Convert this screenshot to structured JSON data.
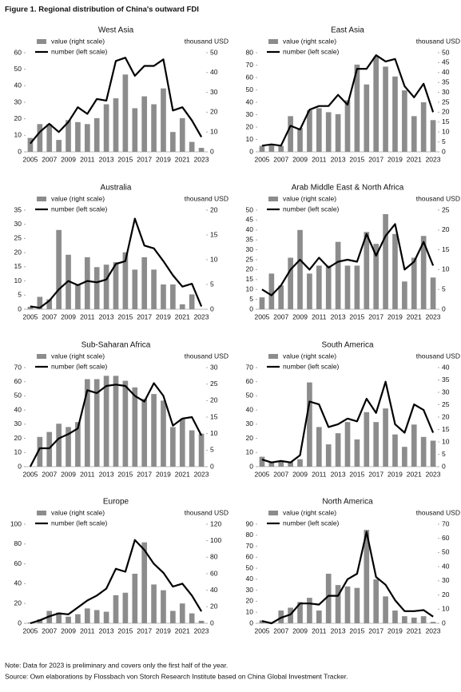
{
  "title": "Figure 1. Regional distribution of China's outward FDI",
  "notes": [
    "Note: Data for 2023 is preliminary and covers only the first half of the year.",
    "Source: Own elaborations by Flossbach von Storch Research Institute based on China Global Investment Tracker."
  ],
  "chart_data": [
    {
      "type": "combo",
      "title": "West Asia",
      "unit": "thousand USD",
      "categories": [
        "2005",
        null,
        "2007",
        null,
        "2009",
        null,
        "2011",
        null,
        "2013",
        null,
        "2015",
        null,
        "2017",
        null,
        "2019",
        null,
        "2021",
        null,
        "2023"
      ],
      "ylim": [
        0,
        60
      ],
      "yticks": [
        0,
        10,
        20,
        30,
        40,
        50,
        60
      ],
      "y2lim": [
        0,
        50
      ],
      "y2ticks": [
        0,
        10,
        20,
        30,
        40,
        50
      ],
      "series": [
        {
          "name": "value (right scale)",
          "type": "bar",
          "axis": "y2",
          "color": "#8c8c8c",
          "values": [
            7,
            14,
            14,
            6,
            16,
            15,
            14,
            17,
            24,
            27,
            39,
            22,
            28,
            24,
            32,
            10,
            17,
            5,
            2
          ]
        },
        {
          "name": "number (left scale)",
          "type": "line",
          "color": "#000000",
          "values": [
            5,
            12,
            17,
            12,
            18,
            27,
            23,
            32,
            31,
            55,
            57,
            46,
            52,
            52,
            56,
            25,
            27,
            19,
            9
          ]
        }
      ]
    },
    {
      "type": "combo",
      "title": "East Asia",
      "unit": "thousand USD",
      "categories": [
        "2005",
        null,
        "2007",
        null,
        "2009",
        null,
        "2011",
        null,
        "2013",
        null,
        "2015",
        null,
        "2017",
        null,
        "2019",
        null,
        "2021",
        null,
        "2023"
      ],
      "ylim": [
        0,
        80
      ],
      "yticks": [
        0,
        10,
        20,
        30,
        40,
        50,
        60,
        70,
        80
      ],
      "y2lim": [
        0,
        50
      ],
      "y2ticks": [
        0,
        5,
        10,
        15,
        20,
        25,
        30,
        35,
        40,
        45,
        50
      ],
      "series": [
        {
          "name": "value (right scale)",
          "type": "bar",
          "axis": "y2",
          "color": "#8c8c8c",
          "values": [
            3,
            4,
            3,
            18,
            12,
            21,
            22,
            20,
            19,
            26,
            44,
            34,
            48,
            43,
            38,
            31,
            18,
            25,
            16
          ]
        },
        {
          "name": "number (left scale)",
          "type": "line",
          "color": "#000000",
          "values": [
            5,
            6,
            5,
            21,
            18,
            34,
            37,
            37,
            46,
            38,
            67,
            67,
            78,
            73,
            75,
            53,
            44,
            55,
            32
          ]
        }
      ]
    },
    {
      "type": "combo",
      "title": "Australia",
      "unit": "thousand USD",
      "categories": [
        "2005",
        null,
        "2007",
        null,
        "2009",
        null,
        "2011",
        null,
        "2013",
        null,
        "2015",
        null,
        "2017",
        null,
        "2019",
        null,
        "2021",
        null,
        "2023"
      ],
      "ylim": [
        0,
        35
      ],
      "yticks": [
        0,
        5,
        10,
        15,
        20,
        25,
        30,
        35
      ],
      "y2lim": [
        0,
        20
      ],
      "y2ticks": [
        0,
        5,
        10,
        15,
        20
      ],
      "series": [
        {
          "name": "value (right scale)",
          "type": "bar",
          "axis": "y2",
          "color": "#8c8c8c",
          "values": [
            0.5,
            2.5,
            2,
            16,
            11,
            5,
            10.5,
            8.5,
            9,
            9.5,
            11.5,
            8,
            10.5,
            8,
            5,
            5,
            1,
            3,
            0
          ]
        },
        {
          "name": "number (left scale)",
          "type": "line",
          "color": "#000000",
          "values": [
            1,
            0.5,
            3,
            7,
            10,
            8.5,
            10,
            9.5,
            10.5,
            16,
            17,
            32,
            22.5,
            21.5,
            17,
            12,
            8,
            9,
            1
          ]
        }
      ]
    },
    {
      "type": "combo",
      "title": "Arab Middle East & North Africa",
      "unit": "thousand USD",
      "categories": [
        "2005",
        null,
        "2007",
        null,
        "2009",
        null,
        "2011",
        null,
        "2013",
        null,
        "2015",
        null,
        "2017",
        null,
        "2019",
        null,
        "2021",
        null,
        "2023"
      ],
      "ylim": [
        0,
        50
      ],
      "yticks": [
        0,
        5,
        10,
        15,
        20,
        25,
        30,
        35,
        40,
        45,
        50
      ],
      "y2lim": [
        0,
        25
      ],
      "y2ticks": [
        0,
        5,
        10,
        15,
        20,
        25
      ],
      "series": [
        {
          "name": "value (right scale)",
          "type": "bar",
          "axis": "y2",
          "color": "#8c8c8c",
          "values": [
            3,
            9,
            6,
            13,
            20,
            9,
            11,
            11,
            17,
            11,
            11,
            19.5,
            16.5,
            24,
            19,
            7,
            13,
            18.5,
            8
          ]
        },
        {
          "name": "number (left scale)",
          "type": "line",
          "color": "#000000",
          "values": [
            10,
            7,
            12,
            20,
            25,
            20,
            26,
            21,
            24,
            25,
            24,
            38,
            27,
            37,
            43,
            20,
            24,
            34,
            22
          ]
        }
      ]
    },
    {
      "type": "combo",
      "title": "Sub-Saharan Africa",
      "unit": "thousand USD",
      "categories": [
        "2005",
        null,
        "2007",
        null,
        "2009",
        null,
        "2011",
        null,
        "2013",
        null,
        "2015",
        null,
        "2017",
        null,
        "2019",
        null,
        "2021",
        null,
        "2023"
      ],
      "ylim": [
        0,
        70
      ],
      "yticks": [
        0,
        10,
        20,
        30,
        40,
        50,
        60,
        70
      ],
      "y2lim": [
        0,
        30
      ],
      "y2ticks": [
        0,
        5,
        10,
        15,
        20,
        25,
        30
      ],
      "series": [
        {
          "name": "value (right scale)",
          "type": "bar",
          "axis": "y2",
          "color": "#8c8c8c",
          "values": [
            0,
            9,
            10.5,
            13,
            12,
            13.5,
            26.5,
            26.5,
            27.5,
            27.5,
            26,
            24,
            20.5,
            22,
            20,
            12,
            14.5,
            11,
            10
          ]
        },
        {
          "name": "number (left scale)",
          "type": "line",
          "color": "#000000",
          "values": [
            0,
            13,
            13,
            20,
            23,
            27,
            54,
            52,
            57,
            58,
            57,
            50,
            46,
            59,
            50,
            29,
            34,
            35,
            22
          ]
        }
      ]
    },
    {
      "type": "combo",
      "title": "South America",
      "unit": "thousand USD",
      "categories": [
        "2005",
        null,
        "2007",
        null,
        "2009",
        null,
        "2011",
        null,
        "2013",
        null,
        "2015",
        null,
        "2017",
        null,
        "2019",
        null,
        "2021",
        null,
        "2023"
      ],
      "ylim": [
        0,
        70
      ],
      "yticks": [
        0,
        10,
        20,
        30,
        40,
        50,
        60,
        70
      ],
      "y2lim": [
        0,
        40
      ],
      "y2ticks": [
        0,
        5,
        10,
        15,
        20,
        25,
        30,
        35,
        40
      ],
      "series": [
        {
          "name": "value (right scale)",
          "type": "bar",
          "axis": "y2",
          "color": "#8c8c8c",
          "values": [
            4,
            2,
            2,
            2,
            3,
            34,
            16,
            9,
            13.5,
            18,
            11,
            22,
            18,
            23.5,
            13,
            8,
            17,
            12,
            10.5
          ]
        },
        {
          "name": "number (left scale)",
          "type": "line",
          "color": "#000000",
          "values": [
            5,
            3,
            4,
            3,
            8,
            46,
            44,
            28,
            30,
            34,
            32,
            48,
            38,
            60,
            30,
            24,
            44,
            40,
            24
          ]
        }
      ]
    },
    {
      "type": "combo",
      "title": "Europe",
      "unit": "thousand USD",
      "categories": [
        "2005",
        null,
        "2007",
        null,
        "2009",
        null,
        "2011",
        null,
        "2013",
        null,
        "2015",
        null,
        "2017",
        null,
        "2019",
        null,
        "2021",
        null,
        "2023"
      ],
      "ylim": [
        0,
        100
      ],
      "yticks": [
        0,
        20,
        40,
        60,
        80,
        100
      ],
      "y2lim": [
        0,
        120
      ],
      "y2ticks": [
        0,
        20,
        40,
        60,
        80,
        100,
        120
      ],
      "series": [
        {
          "name": "value (right scale)",
          "type": "bar",
          "axis": "y2",
          "color": "#8c8c8c",
          "values": [
            1,
            5,
            15,
            13,
            8,
            11,
            18,
            16,
            14,
            34,
            37,
            60,
            98,
            47,
            40,
            15,
            24,
            12,
            3
          ]
        },
        {
          "name": "number (left scale)",
          "type": "line",
          "color": "#000000",
          "values": [
            0,
            3,
            7,
            10,
            9,
            16,
            23,
            28,
            35,
            55,
            52,
            84,
            74,
            60,
            51,
            37,
            40,
            28,
            12
          ]
        }
      ]
    },
    {
      "type": "combo",
      "title": "North America",
      "unit": "thousand USD",
      "categories": [
        "2005",
        null,
        "2007",
        null,
        "2009",
        null,
        "2011",
        null,
        "2013",
        null,
        "2015",
        null,
        "2017",
        null,
        "2019",
        null,
        "2021",
        null,
        "2023"
      ],
      "ylim": [
        0,
        90
      ],
      "yticks": [
        0,
        10,
        20,
        30,
        40,
        50,
        60,
        70,
        80,
        90
      ],
      "y2lim": [
        0,
        70
      ],
      "y2ticks": [
        0,
        10,
        20,
        30,
        40,
        50,
        60,
        70
      ],
      "series": [
        {
          "name": "value (right scale)",
          "type": "bar",
          "axis": "y2",
          "color": "#8c8c8c",
          "values": [
            2,
            0,
            9,
            11,
            15,
            18,
            9,
            35,
            27,
            26,
            25,
            66,
            31,
            19,
            9,
            5,
            4,
            5,
            1
          ]
        },
        {
          "name": "number (left scale)",
          "type": "line",
          "color": "#000000",
          "values": [
            2,
            0,
            5,
            8,
            18,
            18,
            17,
            25,
            25,
            40,
            45,
            83,
            42,
            35,
            21,
            11,
            11,
            12,
            6
          ]
        }
      ]
    }
  ]
}
